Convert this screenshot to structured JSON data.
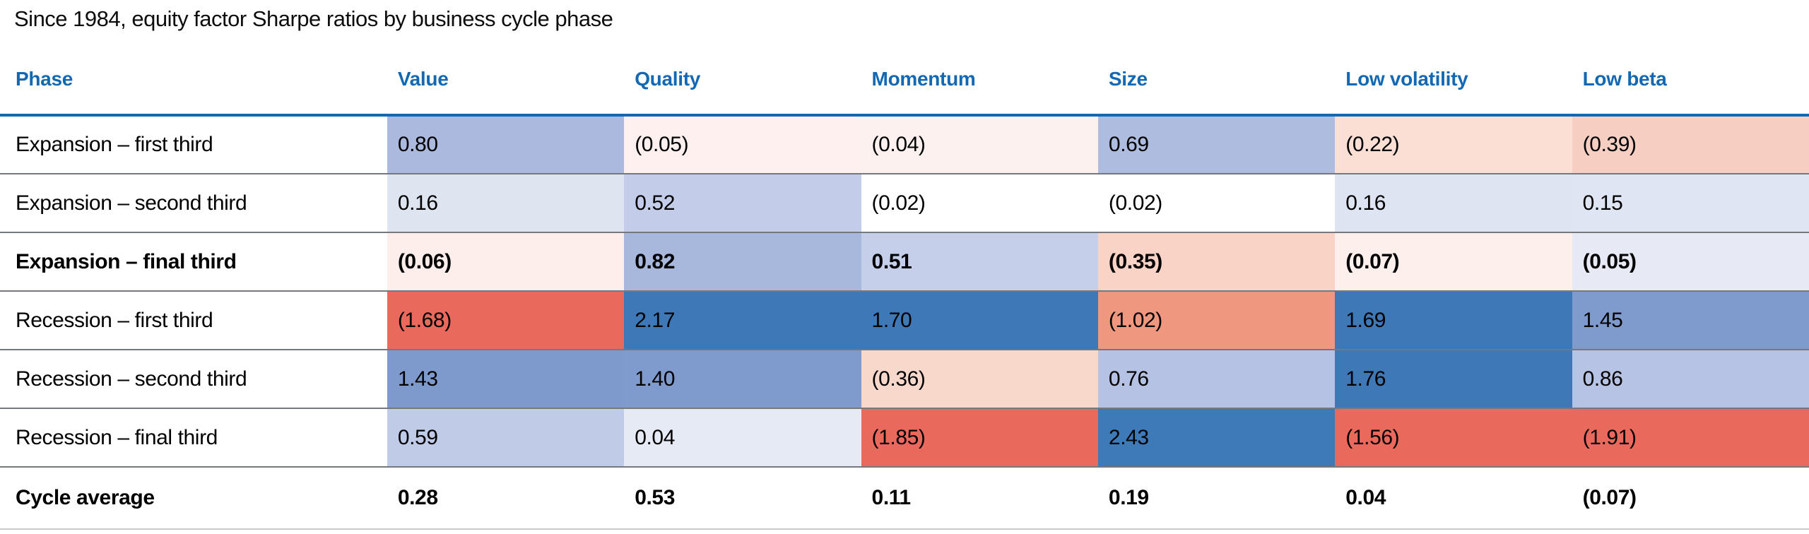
{
  "title": "Since 1984, equity factor Sharpe ratios by business cycle phase",
  "accent_colors": {
    "header_blue": "#1268b2",
    "header_rule_blue": "#1268b2",
    "row_separator_gray": "#75787d",
    "bottom_rule_gray": "#cbcbcb",
    "strong_blue": "#3e78b6",
    "strong_red": "#e9695d"
  },
  "table": {
    "columns": [
      "Phase",
      "Value",
      "Quality",
      "Momentum",
      "Size",
      "Low volatility",
      "Low beta"
    ],
    "rows": [
      {
        "label": "Expansion – first third",
        "bold": false,
        "cells": [
          {
            "text": "0.80",
            "bg": "#aab9dd"
          },
          {
            "text": "(0.05)",
            "bg": "#fdf0ee"
          },
          {
            "text": "(0.04)",
            "bg": "#fdf1ef"
          },
          {
            "text": "0.69",
            "bg": "#aebcdf"
          },
          {
            "text": "(0.22)",
            "bg": "#fbdfd5"
          },
          {
            "text": "(0.39)",
            "bg": "#f7cfc2"
          }
        ]
      },
      {
        "label": "Expansion – second third",
        "bold": false,
        "cells": [
          {
            "text": "0.16",
            "bg": "#dfe4f1"
          },
          {
            "text": "0.52",
            "bg": "#c3cde9"
          },
          {
            "text": "(0.02)",
            "bg": "#ffffff"
          },
          {
            "text": "(0.02)",
            "bg": "#ffffff"
          },
          {
            "text": "0.16",
            "bg": "#dee4f1"
          },
          {
            "text": "0.15",
            "bg": "#dfe5f2"
          }
        ]
      },
      {
        "label": "Expansion – final third",
        "bold": true,
        "cells": [
          {
            "text": "(0.06)",
            "bg": "#fdeeec"
          },
          {
            "text": "0.82",
            "bg": "#a8b7dc"
          },
          {
            "text": "0.51",
            "bg": "#c5cfe9"
          },
          {
            "text": "(0.35)",
            "bg": "#f9d3c6"
          },
          {
            "text": "(0.07)",
            "bg": "#fdefec"
          },
          {
            "text": "(0.05)",
            "bg": "#e7eaf5"
          }
        ]
      },
      {
        "label": "Recession – first third",
        "bold": false,
        "cells": [
          {
            "text": "(1.68)",
            "bg": "#e9695d"
          },
          {
            "text": "2.17",
            "bg": "#3e78b6"
          },
          {
            "text": "1.70",
            "bg": "#3e78b6"
          },
          {
            "text": "(1.02)",
            "bg": "#f0987f"
          },
          {
            "text": "1.69",
            "bg": "#3e78b6"
          },
          {
            "text": "1.45",
            "bg": "#7f9bcd"
          }
        ]
      },
      {
        "label": "Recession – second third",
        "bold": false,
        "cells": [
          {
            "text": "1.43",
            "bg": "#7e9acc"
          },
          {
            "text": "1.40",
            "bg": "#7f9bcd"
          },
          {
            "text": "(0.36)",
            "bg": "#f9d8cc"
          },
          {
            "text": "0.76",
            "bg": "#b5c2e3"
          },
          {
            "text": "1.76",
            "bg": "#3e78b6"
          },
          {
            "text": "0.86",
            "bg": "#b7c3e4"
          }
        ]
      },
      {
        "label": "Recession – final third",
        "bold": false,
        "cells": [
          {
            "text": "0.59",
            "bg": "#c0cbe7"
          },
          {
            "text": "0.04",
            "bg": "#e6eaf5"
          },
          {
            "text": "(1.85)",
            "bg": "#e9695d"
          },
          {
            "text": "2.43",
            "bg": "#3e7ab8"
          },
          {
            "text": "(1.56)",
            "bg": "#e9695d"
          },
          {
            "text": "(1.91)",
            "bg": "#e9695d"
          }
        ]
      },
      {
        "label": "Cycle average",
        "bold": true,
        "average_row": true,
        "cells": [
          {
            "text": "0.28",
            "bg": "#ffffff"
          },
          {
            "text": "0.53",
            "bg": "#ffffff"
          },
          {
            "text": "0.11",
            "bg": "#ffffff"
          },
          {
            "text": "0.19",
            "bg": "#ffffff"
          },
          {
            "text": "0.04",
            "bg": "#ffffff"
          },
          {
            "text": "(0.07)",
            "bg": "#ffffff"
          }
        ]
      }
    ]
  },
  "chart_data": {
    "type": "heatmap",
    "title": "Since 1984, equity factor Sharpe ratios by business cycle phase",
    "columns": [
      "Value",
      "Quality",
      "Momentum",
      "Size",
      "Low volatility",
      "Low beta"
    ],
    "rows": [
      "Expansion – first third",
      "Expansion – second third",
      "Expansion – final third",
      "Recession – first third",
      "Recession – second third",
      "Recession – final third",
      "Cycle average"
    ],
    "values": [
      [
        0.8,
        -0.05,
        -0.04,
        0.69,
        -0.22,
        -0.39
      ],
      [
        0.16,
        0.52,
        -0.02,
        -0.02,
        0.16,
        0.15
      ],
      [
        -0.06,
        0.82,
        0.51,
        -0.35,
        -0.07,
        -0.05
      ],
      [
        -1.68,
        2.17,
        1.7,
        -1.02,
        1.69,
        1.45
      ],
      [
        1.43,
        1.4,
        -0.36,
        0.76,
        1.76,
        0.86
      ],
      [
        0.59,
        0.04,
        -1.85,
        2.43,
        -1.56,
        -1.91
      ],
      [
        0.28,
        0.53,
        0.11,
        0.19,
        0.04,
        -0.07
      ]
    ],
    "colormap": "diverging red (negative) to blue (positive), white near zero; Cycle average row uncolored",
    "notes": "negative values shown in parentheses; 'Expansion – final third' and 'Cycle average' rows are bold"
  }
}
